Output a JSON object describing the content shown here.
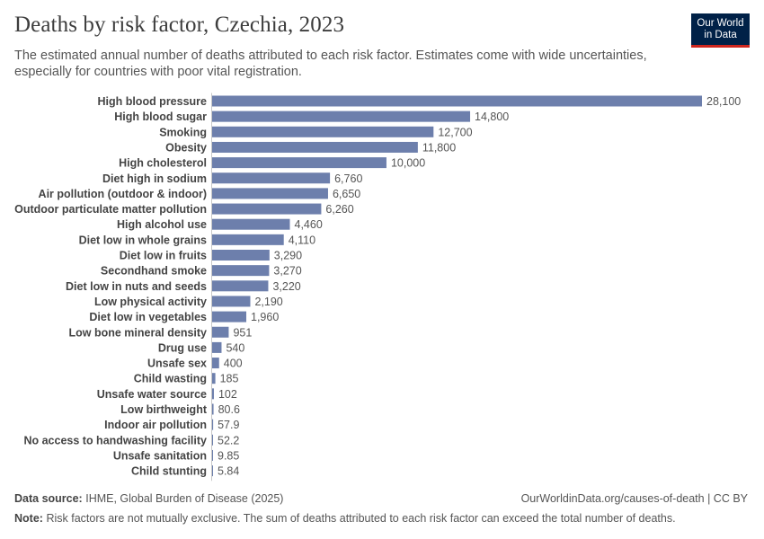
{
  "header": {
    "title": "Deaths by risk factor, Czechia, 2023",
    "subtitle": "The estimated annual number of deaths attributed to each risk factor. Estimates come with wide uncertainties, especially for countries with poor vital registration."
  },
  "logo": {
    "line1": "Our World",
    "line2": "in Data"
  },
  "footer": {
    "source_label": "Data source:",
    "source_text": "IHME, Global Burden of Disease (2025)",
    "url": "OurWorldinData.org/causes-of-death | CC BY",
    "note_label": "Note:",
    "note_text": "Risk factors are not mutually exclusive. The sum of deaths attributed to each risk factor can exceed the total number of deaths."
  },
  "colors": {
    "bar": "#6d7fac",
    "logo_bg": "#002147",
    "logo_accent": "#ce261e"
  },
  "chart_data": {
    "type": "bar",
    "orientation": "horizontal",
    "title": "Deaths by risk factor, Czechia, 2023",
    "categories": [
      "High blood pressure",
      "High blood sugar",
      "Smoking",
      "Obesity",
      "High cholesterol",
      "Diet high in sodium",
      "Air pollution (outdoor & indoor)",
      "Outdoor particulate matter pollution",
      "High alcohol use",
      "Diet low in whole grains",
      "Diet low in fruits",
      "Secondhand smoke",
      "Diet low in nuts and seeds",
      "Low physical activity",
      "Diet low in vegetables",
      "Low bone mineral density",
      "Drug use",
      "Unsafe sex",
      "Child wasting",
      "Unsafe water source",
      "Low birthweight",
      "Indoor air pollution",
      "No access to handwashing facility",
      "Unsafe sanitation",
      "Child stunting"
    ],
    "values": [
      28100,
      14800,
      12700,
      11800,
      10000,
      6760,
      6650,
      6260,
      4460,
      4110,
      3290,
      3270,
      3220,
      2190,
      1960,
      951,
      540,
      400,
      185,
      102,
      80.6,
      57.9,
      52.2,
      9.85,
      5.84
    ],
    "labels": [
      "28,100",
      "14,800",
      "12,700",
      "11,800",
      "10,000",
      "6,760",
      "6,650",
      "6,260",
      "4,460",
      "4,110",
      "3,290",
      "3,270",
      "3,220",
      "2,190",
      "1,960",
      "951",
      "540",
      "400",
      "185",
      "102",
      "80.6",
      "57.9",
      "52.2",
      "9.85",
      "5.84"
    ],
    "xlim": [
      0,
      28100
    ],
    "grid": false,
    "legend": "none"
  }
}
